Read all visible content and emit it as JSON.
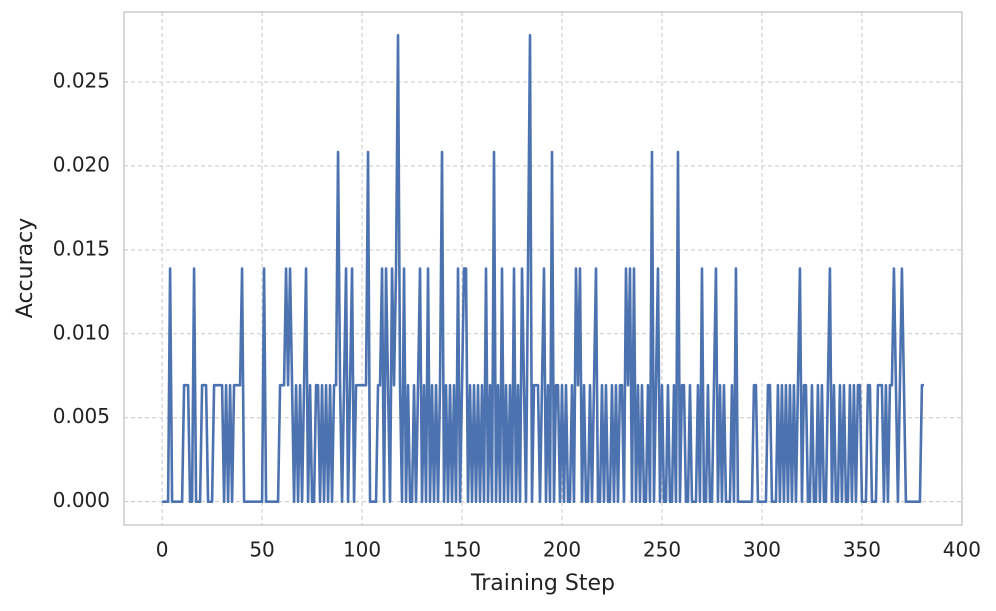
{
  "chart_data": {
    "type": "line",
    "xlabel": "Training Step",
    "ylabel": "Accuracy",
    "x": [
      0,
      1,
      2,
      3,
      4,
      5,
      6,
      7,
      8,
      9,
      10,
      11,
      12,
      13,
      14,
      15,
      16,
      17,
      18,
      19,
      20,
      21,
      22,
      23,
      24,
      25,
      26,
      27,
      28,
      29,
      30,
      31,
      32,
      33,
      34,
      35,
      36,
      37,
      38,
      39,
      40,
      41,
      42,
      43,
      44,
      45,
      46,
      47,
      48,
      49,
      50,
      51,
      52,
      53,
      54,
      55,
      56,
      57,
      58,
      59,
      60,
      61,
      62,
      63,
      64,
      65,
      66,
      67,
      68,
      69,
      70,
      71,
      72,
      73,
      74,
      75,
      76,
      77,
      78,
      79,
      80,
      81,
      82,
      83,
      84,
      85,
      86,
      87,
      88,
      89,
      90,
      91,
      92,
      93,
      94,
      95,
      96,
      97,
      98,
      99,
      100,
      101,
      102,
      103,
      104,
      105,
      106,
      107,
      108,
      109,
      110,
      111,
      112,
      113,
      114,
      115,
      116,
      117,
      118,
      119,
      120,
      121,
      122,
      123,
      124,
      125,
      126,
      127,
      128,
      129,
      130,
      131,
      132,
      133,
      134,
      135,
      136,
      137,
      138,
      139,
      140,
      141,
      142,
      143,
      144,
      145,
      146,
      147,
      148,
      149,
      150,
      151,
      152,
      153,
      154,
      155,
      156,
      157,
      158,
      159,
      160,
      161,
      162,
      163,
      164,
      165,
      166,
      167,
      168,
      169,
      170,
      171,
      172,
      173,
      174,
      175,
      176,
      177,
      178,
      179,
      180,
      181,
      182,
      183,
      184,
      185,
      186,
      187,
      188,
      189,
      190,
      191,
      192,
      193,
      194,
      195,
      196,
      197,
      198,
      199,
      200,
      201,
      202,
      203,
      204,
      205,
      206,
      207,
      208,
      209,
      210,
      211,
      212,
      213,
      214,
      215,
      216,
      217,
      218,
      219,
      220,
      221,
      222,
      223,
      224,
      225,
      226,
      227,
      228,
      229,
      230,
      231,
      232,
      233,
      234,
      235,
      236,
      237,
      238,
      239,
      240,
      241,
      242,
      243,
      244,
      245,
      246,
      247,
      248,
      249,
      250,
      251,
      252,
      253,
      254,
      255,
      256,
      257,
      258,
      259,
      260,
      261,
      262,
      263,
      264,
      265,
      266,
      267,
      268,
      269,
      270,
      271,
      272,
      273,
      274,
      275,
      276,
      277,
      278,
      279,
      280,
      281,
      282,
      283,
      284,
      285,
      286,
      287,
      288,
      289,
      290,
      291,
      292,
      293,
      294,
      295,
      296,
      297,
      298,
      299,
      300,
      301,
      302,
      303,
      304,
      305,
      306,
      307,
      308,
      309,
      310,
      311,
      312,
      313,
      314,
      315,
      316,
      317,
      318,
      319,
      320,
      321,
      322,
      323,
      324,
      325,
      326,
      327,
      328,
      329,
      330,
      331,
      332,
      333,
      334,
      335,
      336,
      337,
      338,
      339,
      340,
      341,
      342,
      343,
      344,
      345,
      346,
      347,
      348,
      349,
      350,
      351,
      352,
      353,
      354,
      355,
      356,
      357,
      358,
      359,
      360,
      361,
      362,
      363,
      364,
      365,
      366,
      367,
      368,
      369,
      370,
      371,
      372,
      373,
      374,
      375,
      376,
      377,
      378,
      379,
      380,
      381
    ],
    "series": [
      {
        "color": "#4c72b0",
        "values": [
          0,
          0,
          0,
          0,
          0.01389,
          0,
          0,
          0,
          0,
          0,
          0,
          0.00694,
          0.00694,
          0.00694,
          0,
          0,
          0.01389,
          0,
          0,
          0,
          0.00694,
          0.00694,
          0.00694,
          0,
          0,
          0,
          0.00694,
          0.00694,
          0.00694,
          0.00694,
          0.00694,
          0,
          0.00694,
          0,
          0.00694,
          0,
          0.00694,
          0.00694,
          0.00694,
          0.00694,
          0.01389,
          0,
          0,
          0,
          0,
          0,
          0,
          0,
          0,
          0,
          0,
          0.01389,
          0,
          0,
          0,
          0,
          0,
          0,
          0,
          0.00694,
          0.00694,
          0.00694,
          0.01389,
          0.00694,
          0.01389,
          0.00694,
          0,
          0.00694,
          0,
          0.00694,
          0,
          0.00694,
          0.01389,
          0,
          0.00694,
          0,
          0,
          0.00694,
          0.00694,
          0,
          0.00694,
          0,
          0.00694,
          0,
          0.00694,
          0,
          0.00694,
          0.00694,
          0.02083,
          0.00694,
          0,
          0.00694,
          0.01389,
          0,
          0.00694,
          0.01389,
          0,
          0.00694,
          0.00694,
          0.00694,
          0.00694,
          0.00694,
          0.00694,
          0.02083,
          0,
          0,
          0,
          0,
          0.00694,
          0.00694,
          0.01389,
          0,
          0.01389,
          0.00694,
          0,
          0.01389,
          0.00694,
          0.01389,
          0.02778,
          0.00694,
          0,
          0.01389,
          0,
          0.00694,
          0,
          0,
          0.00694,
          0,
          0.00694,
          0.01389,
          0,
          0.00694,
          0,
          0.01389,
          0,
          0.00694,
          0,
          0.00694,
          0,
          0.00694,
          0.02083,
          0,
          0.00694,
          0,
          0.00694,
          0,
          0.00694,
          0,
          0.01389,
          0,
          0.00694,
          0.01389,
          0.01389,
          0,
          0.00694,
          0,
          0.00694,
          0,
          0.00694,
          0,
          0.00694,
          0,
          0.01389,
          0,
          0.00694,
          0,
          0.02083,
          0,
          0.00694,
          0,
          0.01389,
          0,
          0.00694,
          0,
          0.00694,
          0,
          0.01389,
          0,
          0.00694,
          0,
          0.01389,
          0.00694,
          0,
          0.01389,
          0.02778,
          0,
          0.00694,
          0.00694,
          0.00694,
          0,
          0.00694,
          0.01389,
          0,
          0.00694,
          0,
          0.02083,
          0,
          0.00694,
          0.00694,
          0,
          0.00694,
          0,
          0.00694,
          0,
          0,
          0.00694,
          0,
          0.01389,
          0.00694,
          0.01389,
          0,
          0.00694,
          0,
          0,
          0.00694,
          0,
          0.00694,
          0.01389,
          0,
          0,
          0.00694,
          0,
          0.00694,
          0,
          0,
          0.00694,
          0,
          0.00694,
          0,
          0.00694,
          0.00694,
          0,
          0.01389,
          0.00694,
          0.01389,
          0,
          0.01389,
          0,
          0.00694,
          0,
          0.00694,
          0,
          0,
          0.00694,
          0,
          0.02083,
          0,
          0.00694,
          0.01389,
          0,
          0.00694,
          0,
          0,
          0.00694,
          0,
          0,
          0.00694,
          0,
          0.02083,
          0,
          0.00694,
          0.00694,
          0,
          0,
          0.00694,
          0,
          0,
          0,
          0.00694,
          0,
          0.01389,
          0,
          0,
          0.00694,
          0,
          0,
          0.00694,
          0.01389,
          0,
          0.00694,
          0,
          0.00694,
          0,
          0,
          0,
          0.00694,
          0,
          0.01389,
          0,
          0,
          0,
          0,
          0,
          0,
          0,
          0,
          0.00694,
          0.00694,
          0,
          0,
          0,
          0,
          0,
          0.00694,
          0.00694,
          0,
          0,
          0,
          0.00694,
          0,
          0.00694,
          0,
          0.00694,
          0,
          0.00694,
          0,
          0.00694,
          0,
          0.00694,
          0.01389,
          0,
          0.00694,
          0.00694,
          0,
          0,
          0.00694,
          0,
          0,
          0.00694,
          0,
          0.00694,
          0,
          0,
          0.00694,
          0.01389,
          0,
          0.00694,
          0,
          0,
          0.00694,
          0,
          0.00694,
          0,
          0,
          0.00694,
          0,
          0.00694,
          0,
          0.00694,
          0.00694,
          0,
          0,
          0,
          0.00694,
          0.00694,
          0,
          0,
          0,
          0.00694,
          0.00694,
          0.00694,
          0,
          0.00694,
          0,
          0.00694,
          0.00694,
          0.01389,
          0.00694,
          0,
          0.00694,
          0.01389,
          0.00694,
          0,
          0,
          0,
          0,
          0,
          0,
          0,
          0,
          0.00694,
          0.00694
        ]
      }
    ],
    "xlim": [
      -19.05,
      400.05
    ],
    "xticks": [
      0,
      50,
      100,
      150,
      200,
      250,
      300,
      350,
      400
    ],
    "ylim": [
      -0.00139,
      0.02917
    ],
    "yticks": [
      {
        "value": 0,
        "label": "0.000"
      },
      {
        "value": 0.005,
        "label": "0.005"
      },
      {
        "value": 0.01,
        "label": "0.010"
      },
      {
        "value": 0.015,
        "label": "0.015"
      },
      {
        "value": 0.02,
        "label": "0.020"
      },
      {
        "value": 0.025,
        "label": "0.025"
      }
    ],
    "grid": true
  }
}
